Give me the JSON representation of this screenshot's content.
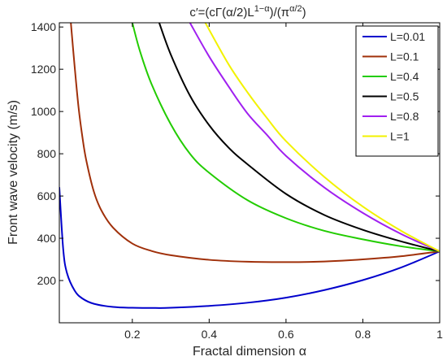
{
  "chart_data": {
    "type": "line",
    "title": {
      "prefix": "c′=(cΓ(α/2)L",
      "sup1": "1−α",
      "middle": ")/(π",
      "sup2": "α/2",
      "suffix": ")"
    },
    "xlabel": "Fractal dimension α",
    "ylabel": "Front wave velocity  (m/s)",
    "xlim": [
      0.01,
      1.0
    ],
    "ylim": [
      0,
      1420
    ],
    "xticks": [
      {
        "value": 0.2,
        "label": "0.2"
      },
      {
        "value": 0.4,
        "label": "0.4"
      },
      {
        "value": 0.6,
        "label": "0.6"
      },
      {
        "value": 0.8,
        "label": "0.8"
      },
      {
        "value": 1.0,
        "label": "1"
      }
    ],
    "yticks": [
      {
        "value": 200,
        "label": "200"
      },
      {
        "value": 400,
        "label": "400"
      },
      {
        "value": 600,
        "label": "600"
      },
      {
        "value": 800,
        "label": "800"
      },
      {
        "value": 1000,
        "label": "1000"
      },
      {
        "value": 1200,
        "label": "1200"
      },
      {
        "value": 1400,
        "label": "1400"
      }
    ],
    "grid": false,
    "legend_position": "top-right",
    "series": [
      {
        "name": "L=0.01",
        "color": "#0000cc",
        "x": [
          0.01,
          0.02,
          0.03,
          0.05,
          0.07,
          0.1,
          0.15,
          0.2,
          0.26,
          0.3,
          0.4,
          0.5,
          0.6,
          0.7,
          0.8,
          0.9,
          1.0
        ],
        "y": [
          640,
          350,
          235,
          152,
          115,
          90,
          75,
          71,
          70,
          71,
          80,
          95,
          119,
          155,
          202,
          262,
          338
        ]
      },
      {
        "name": "L=0.1",
        "color": "#a0300a",
        "x": [
          0.04,
          0.05,
          0.06,
          0.07,
          0.08,
          0.1,
          0.12,
          0.15,
          0.2,
          0.25,
          0.3,
          0.4,
          0.5,
          0.6,
          0.7,
          0.8,
          0.9,
          1.0
        ],
        "y": [
          1420,
          1210,
          1020,
          880,
          770,
          620,
          530,
          450,
          375,
          340,
          320,
          298,
          289,
          287,
          290,
          300,
          315,
          338
        ]
      },
      {
        "name": "L=0.4",
        "color": "#22cc00",
        "x": [
          0.2,
          0.22,
          0.25,
          0.3,
          0.35,
          0.4,
          0.5,
          0.6,
          0.7,
          0.8,
          0.9,
          1.0
        ],
        "y": [
          1420,
          1285,
          1130,
          940,
          800,
          710,
          580,
          495,
          435,
          395,
          362,
          338
        ]
      },
      {
        "name": "L=0.5",
        "color": "#000000",
        "x": [
          0.27,
          0.3,
          0.35,
          0.4,
          0.45,
          0.5,
          0.6,
          0.7,
          0.8,
          0.9,
          1.0
        ],
        "y": [
          1420,
          1270,
          1075,
          935,
          830,
          750,
          610,
          510,
          440,
          385,
          338
        ]
      },
      {
        "name": "L=0.8",
        "color": "#a020f0",
        "x": [
          0.35,
          0.4,
          0.45,
          0.5,
          0.55,
          0.6,
          0.7,
          0.8,
          0.9,
          1.0
        ],
        "y": [
          1420,
          1260,
          1120,
          990,
          890,
          790,
          640,
          520,
          420,
          338
        ]
      },
      {
        "name": "L=1",
        "color": "#f2f200",
        "x": [
          0.39,
          0.45,
          0.5,
          0.55,
          0.6,
          0.7,
          0.8,
          0.9,
          1.0
        ],
        "y": [
          1420,
          1225,
          1090,
          970,
          860,
          690,
          550,
          435,
          338
        ]
      }
    ]
  }
}
